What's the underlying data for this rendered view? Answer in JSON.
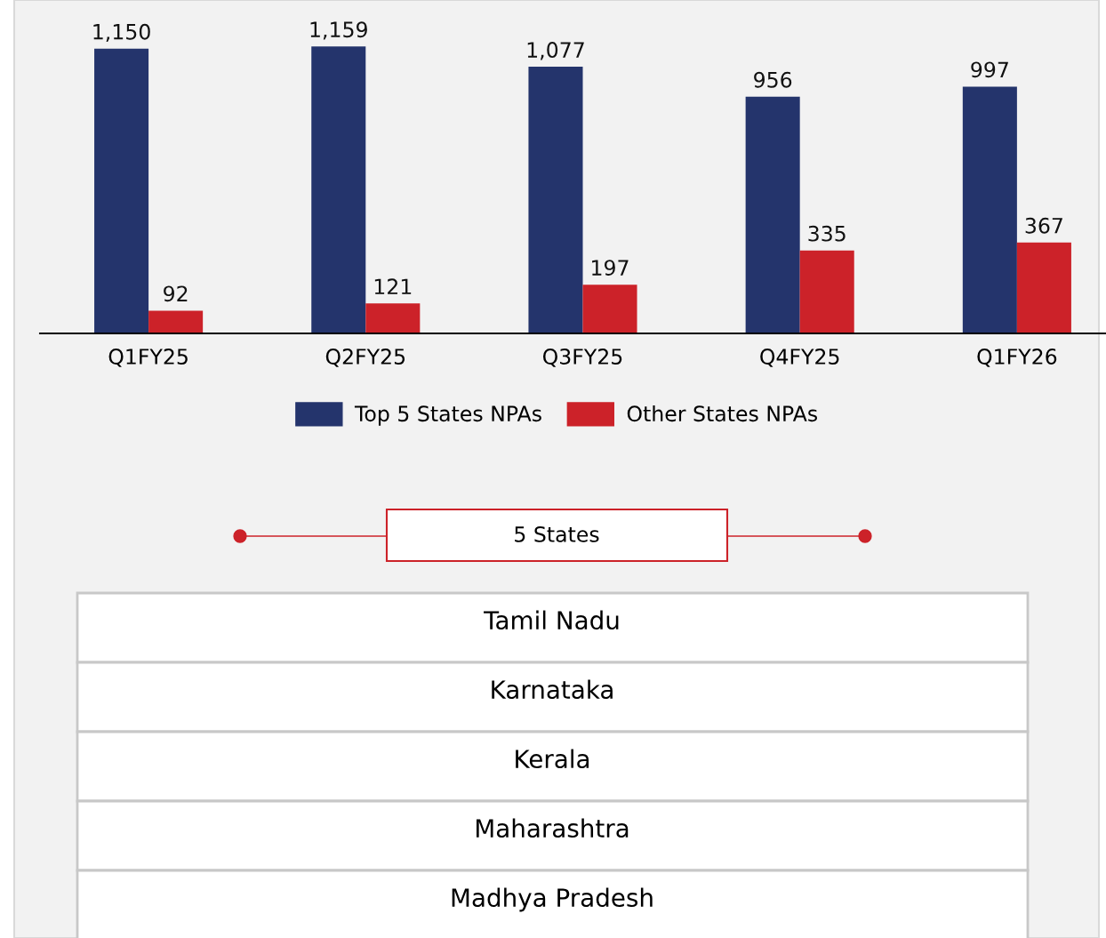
{
  "chart_data": [
    {
      "type": "bar",
      "categories": [
        "Q1FY25",
        "Q2FY25",
        "Q3FY25",
        "Q4FY25",
        "Q1FY26"
      ],
      "series": [
        {
          "name": "Top 5 States NPAs",
          "color": "#24346c",
          "values": [
            1150,
            1159,
            1077,
            956,
            997
          ],
          "value_labels": [
            "1,150",
            "1,159",
            "1,077",
            "956",
            "997"
          ]
        },
        {
          "name": "Other States NPAs",
          "color": "#cc2229",
          "values": [
            92,
            121,
            197,
            335,
            367
          ],
          "value_labels": [
            "92",
            "121",
            "197",
            "335",
            "367"
          ]
        }
      ],
      "legend": "bottom",
      "grid": false
    },
    {
      "type": "other",
      "title": "5 States",
      "annotations": [
        "Tamil Nadu",
        "Karnataka",
        "Kerala",
        "Maharashtra",
        "Madhya Pradesh"
      ]
    }
  ]
}
